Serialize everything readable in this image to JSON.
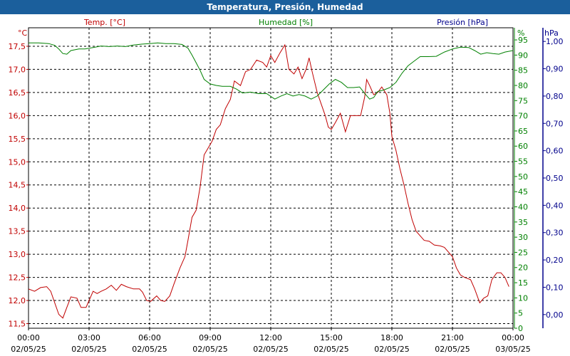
{
  "window": {
    "title": "Temperatura, Presión, Humedad"
  },
  "colors": {
    "temp": "#c00000",
    "hum": "#008000",
    "pres": "#00008b",
    "grid": "#000000",
    "title_bar": "#1b5f9c"
  },
  "chart_data": {
    "type": "line",
    "title": "Temperatura, Presión, Humedad",
    "grid": true,
    "x_ticks": [
      {
        "time": "00:00",
        "date": "02/05/25"
      },
      {
        "time": "03:00",
        "date": "02/05/25"
      },
      {
        "time": "06:00",
        "date": "02/05/25"
      },
      {
        "time": "09:00",
        "date": "02/05/25"
      },
      {
        "time": "12:00",
        "date": "02/05/25"
      },
      {
        "time": "15:00",
        "date": "02/05/25"
      },
      {
        "time": "18:00",
        "date": "02/05/25"
      },
      {
        "time": "21:00",
        "date": "02/05/25"
      },
      {
        "time": "00:00",
        "date": "03/05/25"
      }
    ],
    "x_range_hours": [
      0,
      24
    ],
    "axes": {
      "temp": {
        "label": "Temp. [°C]",
        "unit": "°C",
        "min": 11.4,
        "max": 17.9,
        "ticks": [
          "11,5",
          "12,0",
          "12,5",
          "13,0",
          "13,5",
          "14,0",
          "14,5",
          "15,0",
          "15,5",
          "16,0",
          "16,5",
          "17,0",
          "17,5"
        ]
      },
      "hum": {
        "label": "Humedad [%]",
        "unit": "%",
        "min": 0,
        "max": 99,
        "ticks": [
          "0",
          "5",
          "10",
          "15",
          "20",
          "25",
          "30",
          "35",
          "40",
          "45",
          "50",
          "55",
          "60",
          "65",
          "70",
          "75",
          "80",
          "85",
          "90",
          "95"
        ]
      },
      "pres": {
        "label": "Presión [hPa]",
        "unit": "hPa",
        "min": -0.05,
        "max": 1.05,
        "ticks": [
          "0,00",
          "0,10",
          "0,20",
          "0,30",
          "0,40",
          "0,50",
          "0,60",
          "0,70",
          "0,80",
          "0,90",
          "1,00"
        ]
      }
    },
    "series": [
      {
        "name": "Temp. [°C]",
        "axis": "temp",
        "points": [
          [
            0,
            12.25
          ],
          [
            0.3,
            12.2
          ],
          [
            0.6,
            12.28
          ],
          [
            0.9,
            12.3
          ],
          [
            1.1,
            12.2
          ],
          [
            1.3,
            11.95
          ],
          [
            1.5,
            11.7
          ],
          [
            1.7,
            11.62
          ],
          [
            1.9,
            11.85
          ],
          [
            2.1,
            12.08
          ],
          [
            2.4,
            12.05
          ],
          [
            2.6,
            11.85
          ],
          [
            2.85,
            11.85
          ],
          [
            3.0,
            12.0
          ],
          [
            3.2,
            12.2
          ],
          [
            3.4,
            12.15
          ],
          [
            3.6,
            12.2
          ],
          [
            3.85,
            12.25
          ],
          [
            4.1,
            12.33
          ],
          [
            4.35,
            12.22
          ],
          [
            4.6,
            12.35
          ],
          [
            4.85,
            12.3
          ],
          [
            5.2,
            12.25
          ],
          [
            5.5,
            12.25
          ],
          [
            5.65,
            12.18
          ],
          [
            5.85,
            12.0
          ],
          [
            6.05,
            11.98
          ],
          [
            6.35,
            12.1
          ],
          [
            6.55,
            12.0
          ],
          [
            6.75,
            11.98
          ],
          [
            7.0,
            12.1
          ],
          [
            7.2,
            12.35
          ],
          [
            7.5,
            12.7
          ],
          [
            7.75,
            12.95
          ],
          [
            7.9,
            13.3
          ],
          [
            8.1,
            13.8
          ],
          [
            8.3,
            13.95
          ],
          [
            8.5,
            14.45
          ],
          [
            8.7,
            15.15
          ],
          [
            8.9,
            15.3
          ],
          [
            9.1,
            15.45
          ],
          [
            9.3,
            15.7
          ],
          [
            9.5,
            15.8
          ],
          [
            9.75,
            16.15
          ],
          [
            10.0,
            16.35
          ],
          [
            10.2,
            16.75
          ],
          [
            10.5,
            16.65
          ],
          [
            10.75,
            16.95
          ],
          [
            11.0,
            17.0
          ],
          [
            11.3,
            17.2
          ],
          [
            11.6,
            17.15
          ],
          [
            11.8,
            17.05
          ],
          [
            12.0,
            17.3
          ],
          [
            12.2,
            17.15
          ],
          [
            12.45,
            17.35
          ],
          [
            12.7,
            17.53
          ],
          [
            12.9,
            17.0
          ],
          [
            13.15,
            16.9
          ],
          [
            13.35,
            17.05
          ],
          [
            13.55,
            16.8
          ],
          [
            13.75,
            17.0
          ],
          [
            13.9,
            17.25
          ],
          [
            14.05,
            16.95
          ],
          [
            14.3,
            16.5
          ],
          [
            14.5,
            16.25
          ],
          [
            14.7,
            16.0
          ],
          [
            14.85,
            15.75
          ],
          [
            15.0,
            15.7
          ],
          [
            15.2,
            15.85
          ],
          [
            15.45,
            16.05
          ],
          [
            15.7,
            15.65
          ],
          [
            15.95,
            16.0
          ],
          [
            16.2,
            16.0
          ],
          [
            16.45,
            16.0
          ],
          [
            16.65,
            16.4
          ],
          [
            16.75,
            16.78
          ],
          [
            16.9,
            16.65
          ],
          [
            17.1,
            16.45
          ],
          [
            17.3,
            16.5
          ],
          [
            17.5,
            16.62
          ],
          [
            17.75,
            16.45
          ],
          [
            17.9,
            16.05
          ],
          [
            18.0,
            15.55
          ],
          [
            18.2,
            15.25
          ],
          [
            18.4,
            14.85
          ],
          [
            18.6,
            14.5
          ],
          [
            18.8,
            14.1
          ],
          [
            19.0,
            13.75
          ],
          [
            19.2,
            13.5
          ],
          [
            19.4,
            13.4
          ],
          [
            19.6,
            13.3
          ],
          [
            19.85,
            13.28
          ],
          [
            20.1,
            13.2
          ],
          [
            20.4,
            13.18
          ],
          [
            20.6,
            13.15
          ],
          [
            20.8,
            13.05
          ],
          [
            21.0,
            12.95
          ],
          [
            21.2,
            12.7
          ],
          [
            21.4,
            12.55
          ],
          [
            21.6,
            12.5
          ],
          [
            21.9,
            12.45
          ],
          [
            22.1,
            12.25
          ],
          [
            22.35,
            11.95
          ],
          [
            22.55,
            12.05
          ],
          [
            22.75,
            12.1
          ],
          [
            22.95,
            12.45
          ],
          [
            23.2,
            12.6
          ],
          [
            23.4,
            12.6
          ],
          [
            23.6,
            12.5
          ],
          [
            23.8,
            12.3
          ]
        ]
      },
      {
        "name": "Humedad [%]",
        "axis": "hum",
        "points": [
          [
            0,
            94
          ],
          [
            0.5,
            94
          ],
          [
            1.0,
            93.8
          ],
          [
            1.3,
            93.2
          ],
          [
            1.5,
            92
          ],
          [
            1.7,
            90.5
          ],
          [
            1.9,
            90.3
          ],
          [
            2.1,
            91.5
          ],
          [
            2.5,
            92
          ],
          [
            2.8,
            92
          ],
          [
            3.2,
            92.5
          ],
          [
            3.6,
            93
          ],
          [
            4.0,
            92.8
          ],
          [
            4.4,
            93
          ],
          [
            4.8,
            92.8
          ],
          [
            5.2,
            93.3
          ],
          [
            5.6,
            93.6
          ],
          [
            6.0,
            93.8
          ],
          [
            6.4,
            94
          ],
          [
            6.8,
            93.8
          ],
          [
            7.2,
            93.8
          ],
          [
            7.6,
            93.5
          ],
          [
            7.9,
            92.3
          ],
          [
            8.1,
            90
          ],
          [
            8.3,
            87.5
          ],
          [
            8.5,
            85
          ],
          [
            8.7,
            82
          ],
          [
            9.0,
            80.5
          ],
          [
            9.3,
            80
          ],
          [
            9.6,
            79.7
          ],
          [
            10.0,
            79.7
          ],
          [
            10.3,
            78.8
          ],
          [
            10.6,
            77.5
          ],
          [
            11.0,
            77.8
          ],
          [
            11.4,
            77.3
          ],
          [
            11.8,
            77.3
          ],
          [
            12.2,
            75.5
          ],
          [
            12.5,
            76.5
          ],
          [
            12.8,
            77.3
          ],
          [
            13.1,
            76.5
          ],
          [
            13.4,
            77
          ],
          [
            13.7,
            76.5
          ],
          [
            14.0,
            75.5
          ],
          [
            14.3,
            76.5
          ],
          [
            14.6,
            78.5
          ],
          [
            14.9,
            80.5
          ],
          [
            15.2,
            82
          ],
          [
            15.5,
            81
          ],
          [
            15.8,
            79.3
          ],
          [
            16.1,
            79.3
          ],
          [
            16.4,
            79.5
          ],
          [
            16.7,
            77
          ],
          [
            16.9,
            75.5
          ],
          [
            17.1,
            76
          ],
          [
            17.3,
            78
          ],
          [
            17.6,
            78.5
          ],
          [
            17.9,
            79.3
          ],
          [
            18.2,
            81
          ],
          [
            18.5,
            84
          ],
          [
            18.8,
            86.5
          ],
          [
            19.1,
            88
          ],
          [
            19.4,
            89.5
          ],
          [
            19.8,
            89.5
          ],
          [
            20.2,
            89.6
          ],
          [
            20.6,
            91
          ],
          [
            21.0,
            92
          ],
          [
            21.4,
            92.6
          ],
          [
            21.8,
            92.5
          ],
          [
            22.1,
            91.5
          ],
          [
            22.4,
            90.3
          ],
          [
            22.7,
            90.8
          ],
          [
            23.0,
            90.5
          ],
          [
            23.3,
            90.3
          ],
          [
            23.6,
            91
          ],
          [
            24.0,
            91.5
          ],
          [
            24.3,
            91.8
          ],
          [
            24.5,
            92
          ]
        ]
      }
    ]
  }
}
